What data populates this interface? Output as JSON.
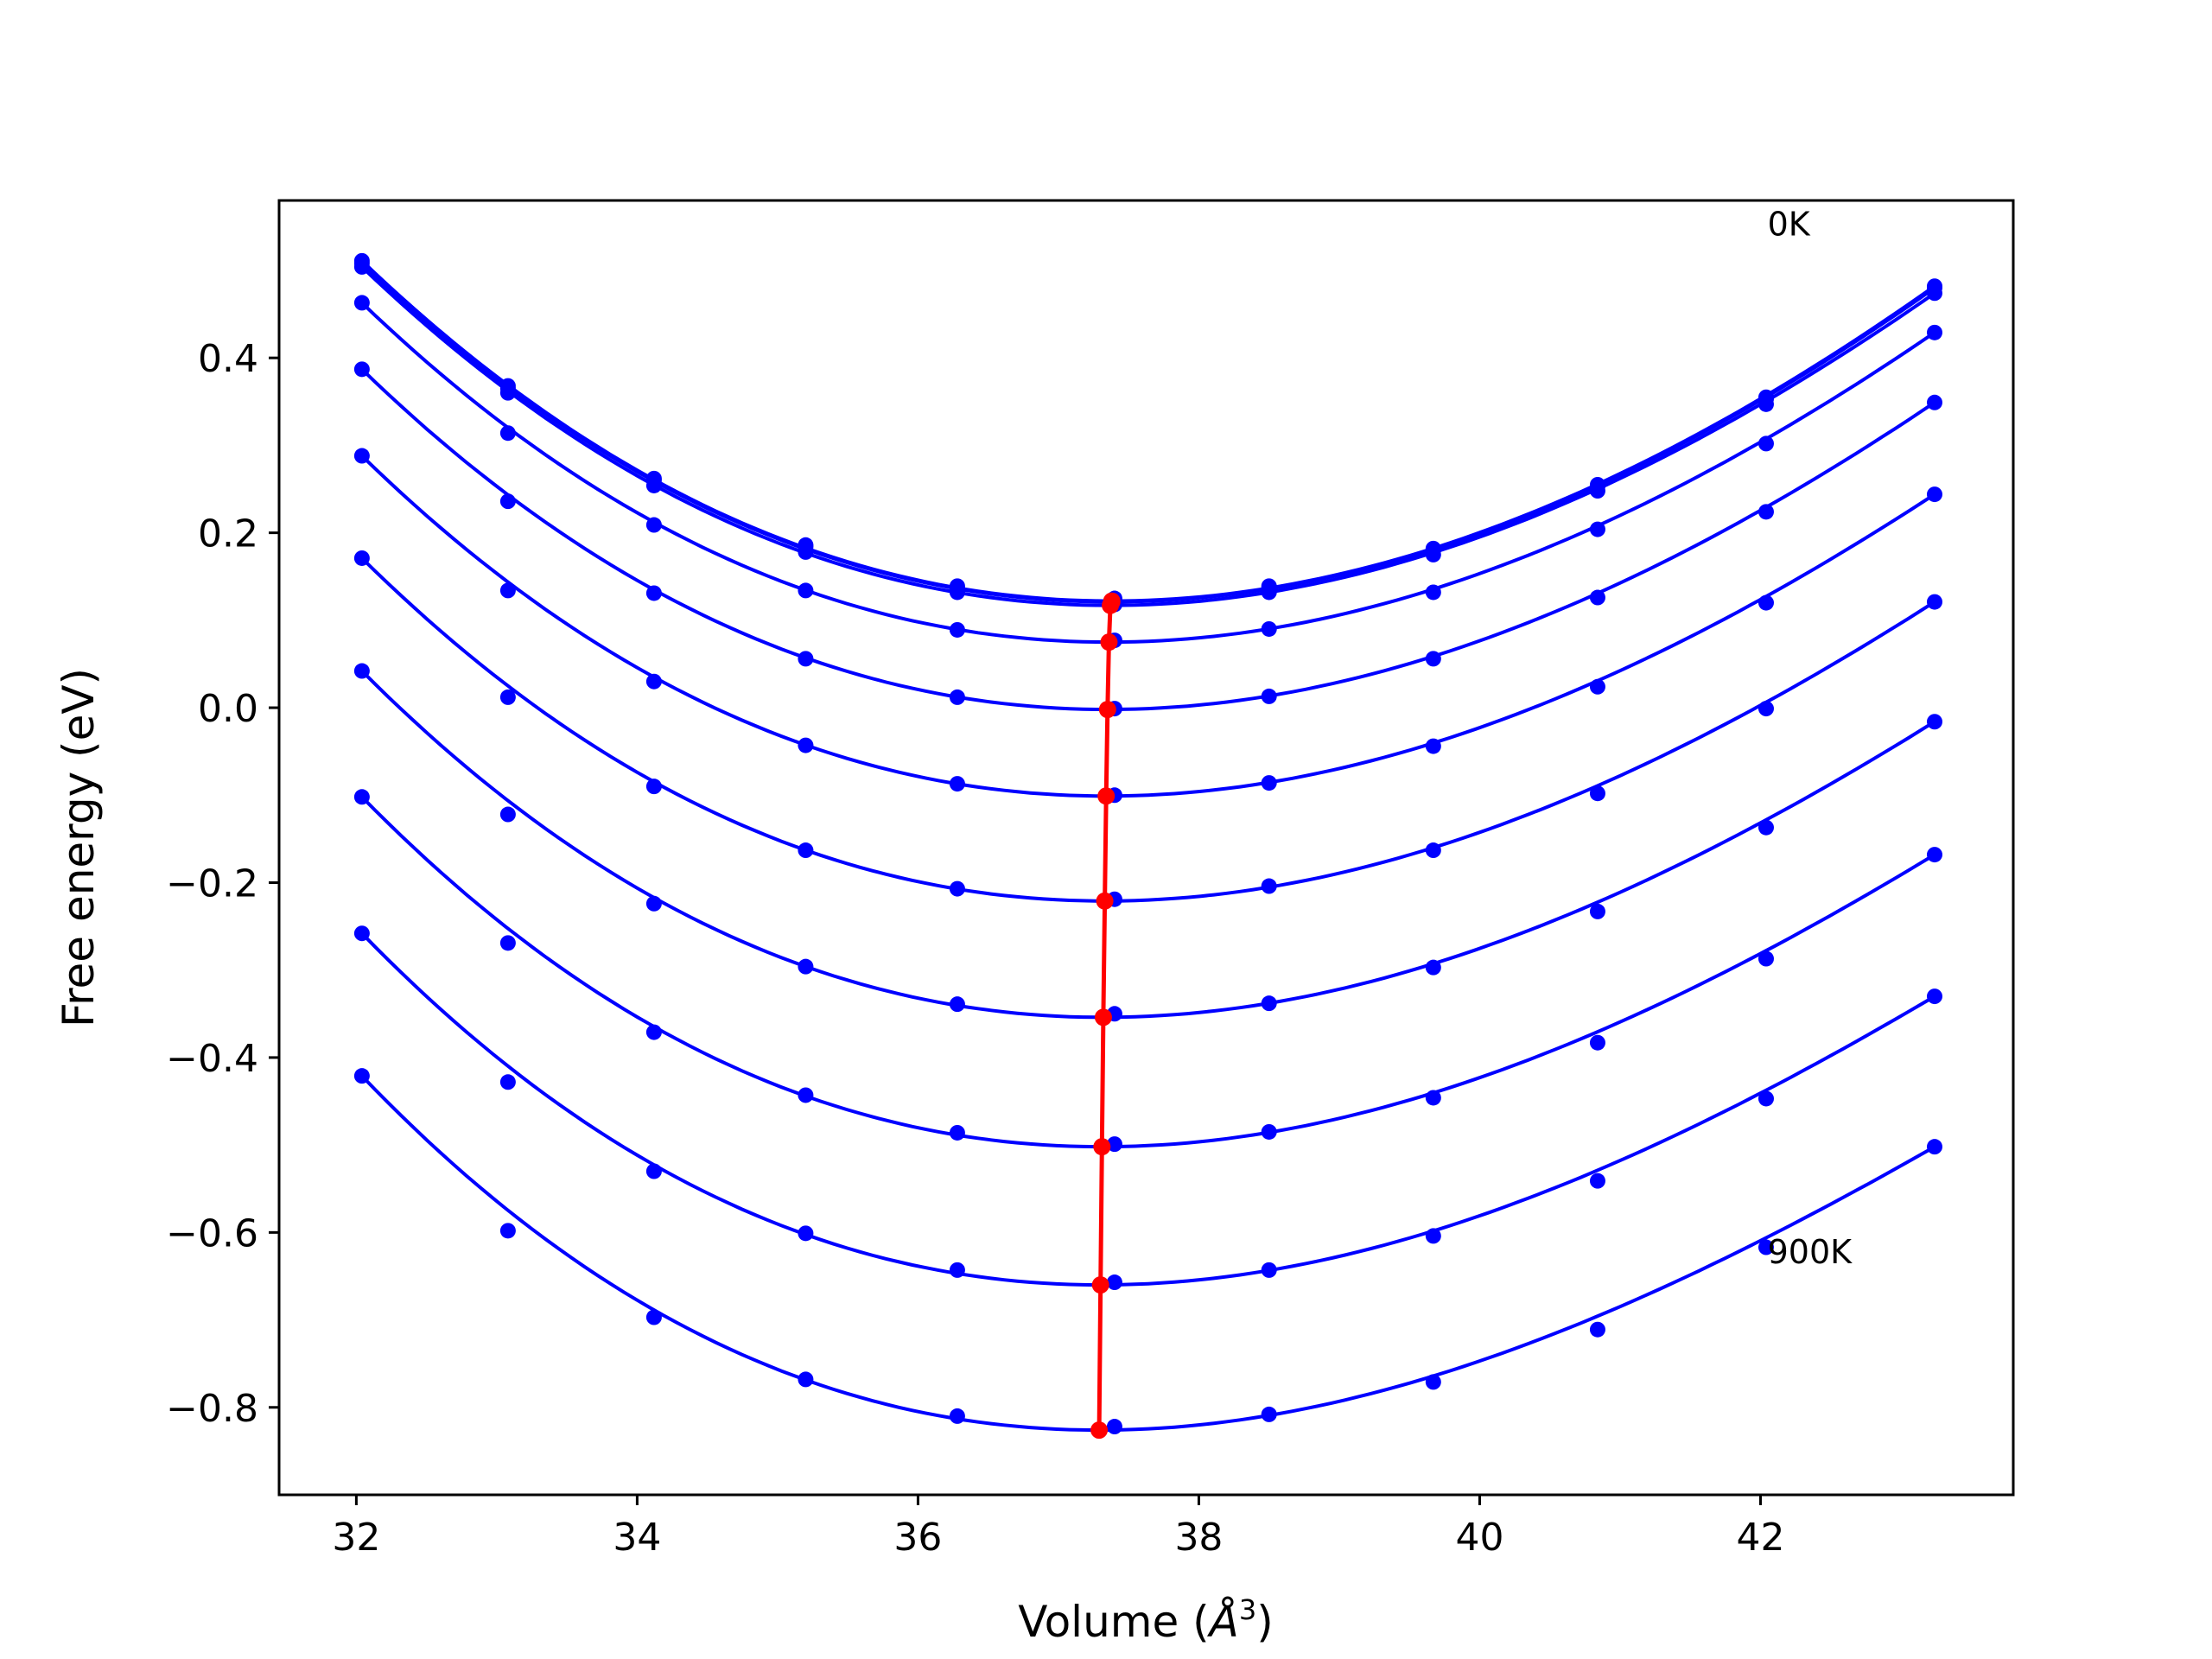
{
  "chart_data": {
    "type": "line",
    "title": "",
    "xlabel": "Volume (",
    "xlabel_symbol": "Å",
    "xlabel_exponent": "3",
    "xlabel_suffix": ")",
    "ylabel": "Free energy (eV)",
    "xlim": [
      31.45,
      43.8
    ],
    "ylim": [
      -0.9,
      0.58
    ],
    "xticks": [
      32,
      34,
      36,
      38,
      40,
      42
    ],
    "xtick_labels": [
      "32",
      "34",
      "36",
      "38",
      "40",
      "42"
    ],
    "yticks": [
      -0.8,
      -0.6,
      -0.4,
      -0.2,
      0.0,
      0.2,
      0.4
    ],
    "ytick_labels": [
      "−0.8",
      "−0.6",
      "−0.4",
      "−0.2",
      "0.0",
      "0.2",
      "0.4"
    ],
    "grid": false,
    "legend": "none",
    "annotations": [
      {
        "text": "0K",
        "x": 42.05,
        "y": 0.54
      },
      {
        "text": "900K",
        "x": 42.05,
        "y": -0.635
      }
    ],
    "volumes": [
      32.04,
      33.08,
      34.12,
      35.2,
      36.28,
      37.4,
      38.5,
      39.67,
      40.84,
      42.04,
      43.24
    ],
    "series": [
      {
        "name": "",
        "values": [
          0.511,
          0.368,
          0.262,
          0.186,
          0.139,
          0.125,
          0.139,
          0.182,
          0.255,
          0.355,
          0.482
        ],
        "fit": {
          "vmin": 37.38,
          "emin": 0.122
        }
      },
      {
        "name": "",
        "values": [
          0.508,
          0.365,
          0.26,
          0.184,
          0.137,
          0.123,
          0.137,
          0.18,
          0.253,
          0.353,
          0.48
        ],
        "fit": {
          "vmin": 37.38,
          "emin": 0.121
        }
      },
      {
        "name": "",
        "values": [
          0.504,
          0.36,
          0.254,
          0.178,
          0.132,
          0.118,
          0.132,
          0.175,
          0.248,
          0.347,
          0.474
        ],
        "fit": {
          "vmin": 37.37,
          "emin": 0.117
        }
      },
      {
        "name": "",
        "values": [
          0.463,
          0.314,
          0.209,
          0.134,
          0.089,
          0.077,
          0.09,
          0.132,
          0.204,
          0.302,
          0.429
        ],
        "fit": {
          "vmin": 37.36,
          "emin": 0.075
        }
      },
      {
        "name": "",
        "values": [
          0.387,
          0.236,
          0.131,
          0.056,
          0.012,
          -0.001,
          0.013,
          0.056,
          0.126,
          0.224,
          0.349
        ],
        "fit": {
          "vmin": 37.35,
          "emin": -0.002
        }
      },
      {
        "name": "",
        "values": [
          0.288,
          0.134,
          0.03,
          -0.043,
          -0.087,
          -0.1,
          -0.086,
          -0.044,
          0.024,
          0.12,
          0.244
        ],
        "fit": {
          "vmin": 37.34,
          "emin": -0.101
        }
      },
      {
        "name": "",
        "values": [
          0.171,
          0.012,
          -0.09,
          -0.163,
          -0.207,
          -0.219,
          -0.204,
          -0.163,
          -0.098,
          -0.001,
          0.121
        ],
        "fit": {
          "vmin": 37.33,
          "emin": -0.221
        }
      },
      {
        "name": "",
        "values": [
          0.042,
          -0.122,
          -0.224,
          -0.296,
          -0.339,
          -0.35,
          -0.338,
          -0.297,
          -0.233,
          -0.137,
          -0.016
        ],
        "fit": {
          "vmin": 37.32,
          "emin": -0.354
        }
      },
      {
        "name": "",
        "values": [
          -0.102,
          -0.269,
          -0.371,
          -0.443,
          -0.486,
          -0.499,
          -0.485,
          -0.446,
          -0.383,
          -0.287,
          -0.168
        ],
        "fit": {
          "vmin": 37.31,
          "emin": -0.502
        }
      },
      {
        "name": "",
        "values": [
          -0.258,
          -0.428,
          -0.53,
          -0.601,
          -0.643,
          -0.657,
          -0.643,
          -0.604,
          -0.541,
          -0.447,
          -0.33
        ],
        "fit": {
          "vmin": 37.3,
          "emin": -0.66
        }
      },
      {
        "name": "",
        "values": [
          -0.421,
          -0.598,
          -0.697,
          -0.768,
          -0.81,
          -0.822,
          -0.808,
          -0.771,
          -0.711,
          -0.617,
          -0.502
        ],
        "fit": {
          "vmin": 37.29,
          "emin": -0.826
        }
      }
    ],
    "minima": [
      {
        "x": 37.38,
        "y": 0.122
      },
      {
        "x": 37.38,
        "y": 0.121
      },
      {
        "x": 37.37,
        "y": 0.117
      },
      {
        "x": 37.36,
        "y": 0.075
      },
      {
        "x": 37.35,
        "y": -0.002
      },
      {
        "x": 37.34,
        "y": -0.101
      },
      {
        "x": 37.33,
        "y": -0.221
      },
      {
        "x": 37.32,
        "y": -0.354
      },
      {
        "x": 37.31,
        "y": -0.502
      },
      {
        "x": 37.3,
        "y": -0.66
      },
      {
        "x": 37.29,
        "y": -0.826
      }
    ],
    "colors": {
      "curves": "#0000ff",
      "minima": "#ff0000",
      "axes": "#000000"
    }
  }
}
